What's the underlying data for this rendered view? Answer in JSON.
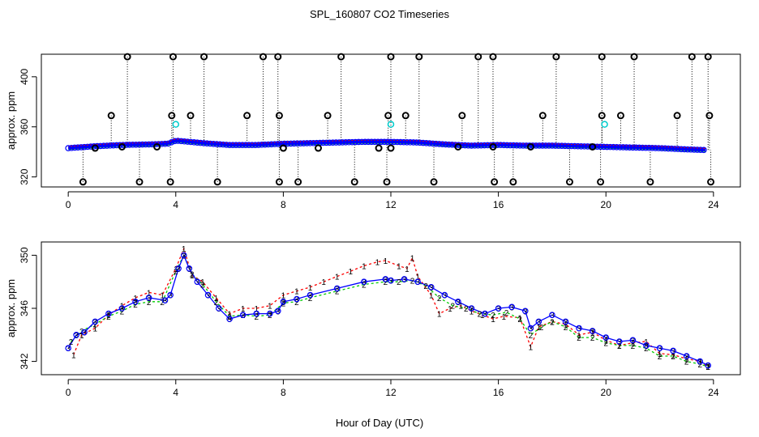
{
  "chart_data": {
    "type": "line",
    "title": "SPL_160807  CO2 Timeseries",
    "xlabel": "Hour of Day (UTC)",
    "colors": {
      "s1": "#ff0000",
      "s2": "#00cc00",
      "s3": "#0000ff",
      "outlier": "#000000",
      "cyan": "#00cccc"
    },
    "panels": [
      {
        "name": "top",
        "ylabel": "approx. ppm",
        "xlim": [
          -1,
          25
        ],
        "ylim": [
          312,
          418
        ],
        "xticks": [
          "0",
          "4",
          "8",
          "12",
          "16",
          "20",
          "24"
        ],
        "xtickValues": [
          0,
          4,
          8,
          12,
          16,
          20,
          24
        ],
        "yticks": [
          "320",
          "360",
          "400"
        ],
        "ytickValues": [
          320,
          360,
          400
        ],
        "baseline": [
          [
            0,
            343
          ],
          [
            1,
            344.5
          ],
          [
            2,
            345.5
          ],
          [
            3,
            346
          ],
          [
            3.7,
            346.5
          ],
          [
            4,
            349
          ],
          [
            4.5,
            348
          ],
          [
            5,
            347
          ],
          [
            6,
            345.5
          ],
          [
            7,
            345.5
          ],
          [
            8,
            346.5
          ],
          [
            10,
            347.5
          ],
          [
            11,
            348
          ],
          [
            12,
            348
          ],
          [
            13,
            347.5
          ],
          [
            14,
            346
          ],
          [
            15,
            345
          ],
          [
            16,
            345.5
          ],
          [
            17,
            345
          ],
          [
            18,
            345
          ],
          [
            19,
            344.5
          ],
          [
            20,
            344
          ],
          [
            21,
            343.5
          ],
          [
            22,
            343
          ],
          [
            23,
            342
          ],
          [
            23.7,
            341.5
          ]
        ],
        "outliers_high": [
          [
            2.2,
            416
          ],
          [
            3.9,
            416
          ],
          [
            5.05,
            416
          ],
          [
            7.25,
            416
          ],
          [
            7.8,
            416
          ],
          [
            10.15,
            416
          ],
          [
            12,
            416
          ],
          [
            13.05,
            416
          ],
          [
            15.25,
            416
          ],
          [
            15.8,
            416
          ],
          [
            18.15,
            416
          ],
          [
            19.85,
            416
          ],
          [
            21.05,
            416
          ],
          [
            23.2,
            416
          ],
          [
            23.8,
            416
          ]
        ],
        "outliers_mid": [
          [
            1.6,
            369
          ],
          [
            3.85,
            369
          ],
          [
            4.55,
            369
          ],
          [
            6.65,
            369
          ],
          [
            7.85,
            369
          ],
          [
            9.65,
            369
          ],
          [
            11.9,
            369
          ],
          [
            12.55,
            369
          ],
          [
            14.65,
            369
          ],
          [
            17.65,
            369
          ],
          [
            19.85,
            369
          ],
          [
            20.55,
            369
          ],
          [
            22.65,
            369
          ],
          [
            23.85,
            369
          ]
        ],
        "outliers_low": [
          [
            0.55,
            316
          ],
          [
            2.65,
            316
          ],
          [
            3.8,
            316
          ],
          [
            5.55,
            316
          ],
          [
            7.85,
            316
          ],
          [
            8.55,
            316
          ],
          [
            10.65,
            316
          ],
          [
            11.85,
            316
          ],
          [
            13.6,
            316
          ],
          [
            15.85,
            316
          ],
          [
            16.55,
            316
          ],
          [
            18.65,
            316
          ],
          [
            19.8,
            316
          ],
          [
            21.65,
            316
          ],
          [
            23.9,
            316
          ]
        ],
        "near_baseline": [
          [
            1.0,
            343
          ],
          [
            2.0,
            344
          ],
          [
            3.3,
            344
          ],
          [
            8.0,
            343
          ],
          [
            9.3,
            343
          ],
          [
            11.55,
            343
          ],
          [
            12.0,
            343
          ],
          [
            14.5,
            344
          ],
          [
            15.8,
            344
          ],
          [
            17.2,
            344
          ],
          [
            19.5,
            344
          ]
        ],
        "cyan_points": [
          [
            4.0,
            362
          ],
          [
            12.0,
            362
          ],
          [
            19.95,
            362
          ]
        ]
      },
      {
        "name": "bottom",
        "ylabel": "approx. ppm",
        "xlim": [
          -1,
          25
        ],
        "ylim": [
          341,
          351
        ],
        "xticks": [
          "0",
          "4",
          "8",
          "12",
          "16",
          "20",
          "24"
        ],
        "xtickValues": [
          0,
          4,
          8,
          12,
          16,
          20,
          24
        ],
        "yticks": [
          "342",
          "346",
          "350"
        ],
        "ytickValues": [
          342,
          346,
          350
        ],
        "series3": [
          [
            0,
            343
          ],
          [
            0.3,
            344
          ],
          [
            0.6,
            344.2
          ],
          [
            1,
            345
          ],
          [
            1.5,
            345.6
          ],
          [
            2,
            346
          ],
          [
            2.5,
            346.5
          ],
          [
            3,
            346.8
          ],
          [
            3.6,
            346.6
          ],
          [
            3.8,
            347
          ],
          [
            4.1,
            349
          ],
          [
            4.3,
            350
          ],
          [
            4.5,
            349
          ],
          [
            4.8,
            348
          ],
          [
            5.2,
            347
          ],
          [
            5.6,
            346
          ],
          [
            6,
            345.2
          ],
          [
            6.5,
            345.5
          ],
          [
            7,
            345.6
          ],
          [
            7.5,
            345.6
          ],
          [
            7.8,
            345.8
          ],
          [
            8,
            346.5
          ],
          [
            8.5,
            346.7
          ],
          [
            9,
            347
          ],
          [
            10,
            347.5
          ],
          [
            11,
            348
          ],
          [
            11.8,
            348.2
          ],
          [
            12,
            348.1
          ],
          [
            12.5,
            348.2
          ],
          [
            13,
            348
          ],
          [
            13.5,
            347.6
          ],
          [
            14,
            347
          ],
          [
            14.5,
            346.5
          ],
          [
            15,
            346
          ],
          [
            15.5,
            345.6
          ],
          [
            16,
            346
          ],
          [
            16.5,
            346.1
          ],
          [
            17,
            345.8
          ],
          [
            17.2,
            344.5
          ],
          [
            17.5,
            345
          ],
          [
            18,
            345.5
          ],
          [
            18.5,
            345
          ],
          [
            19,
            344.5
          ],
          [
            19.5,
            344.3
          ],
          [
            20,
            343.8
          ],
          [
            20.5,
            343.5
          ],
          [
            21,
            343.6
          ],
          [
            21.5,
            343.2
          ],
          [
            22,
            343
          ],
          [
            22.5,
            342.8
          ],
          [
            23,
            342.4
          ],
          [
            23.5,
            342
          ],
          [
            23.8,
            341.7
          ]
        ],
        "series1": [
          [
            0.2,
            342.5
          ],
          [
            0.5,
            344
          ],
          [
            1,
            344.5
          ],
          [
            1.5,
            345.5
          ],
          [
            2,
            346.2
          ],
          [
            2.5,
            346.8
          ],
          [
            3,
            347.2
          ],
          [
            3.5,
            347
          ],
          [
            4,
            349
          ],
          [
            4.3,
            350.5
          ],
          [
            4.6,
            348.5
          ],
          [
            5,
            348
          ],
          [
            5.5,
            346.8
          ],
          [
            6,
            345.6
          ],
          [
            6.5,
            346
          ],
          [
            7,
            346
          ],
          [
            7.5,
            346.2
          ],
          [
            8,
            347
          ],
          [
            8.5,
            347.3
          ],
          [
            9,
            347.6
          ],
          [
            9.5,
            348
          ],
          [
            10,
            348.4
          ],
          [
            10.5,
            348.8
          ],
          [
            11,
            349.2
          ],
          [
            11.5,
            349.5
          ],
          [
            11.8,
            349.6
          ],
          [
            12.3,
            349.2
          ],
          [
            12.6,
            349
          ],
          [
            12.8,
            349.8
          ],
          [
            13,
            348.4
          ],
          [
            13.5,
            347
          ],
          [
            13.8,
            345.6
          ],
          [
            14.2,
            346
          ],
          [
            14.6,
            346.2
          ],
          [
            15,
            345.8
          ],
          [
            15.4,
            345.5
          ],
          [
            15.8,
            345.2
          ],
          [
            16.2,
            345.4
          ],
          [
            16.8,
            345.3
          ],
          [
            17.2,
            343.1
          ],
          [
            17.5,
            344.6
          ],
          [
            18,
            345
          ],
          [
            18.5,
            344.8
          ],
          [
            19,
            344
          ],
          [
            19.5,
            344.2
          ],
          [
            20,
            343.6
          ],
          [
            20.5,
            343.2
          ],
          [
            21,
            343.4
          ],
          [
            21.5,
            343.5
          ],
          [
            22,
            342.6
          ],
          [
            22.5,
            342.5
          ],
          [
            23,
            342.2
          ],
          [
            23.5,
            342
          ],
          [
            23.8,
            341.6
          ]
        ],
        "series2": [
          [
            0.1,
            343.5
          ],
          [
            0.5,
            344.3
          ],
          [
            1,
            344.8
          ],
          [
            1.5,
            345.4
          ],
          [
            2,
            345.8
          ],
          [
            2.5,
            346.3
          ],
          [
            3,
            346.5
          ],
          [
            3.5,
            346.5
          ],
          [
            4,
            348.8
          ],
          [
            4.3,
            350
          ],
          [
            4.6,
            348.6
          ],
          [
            5,
            347.8
          ],
          [
            5.5,
            346.5
          ],
          [
            6,
            345.4
          ],
          [
            6.5,
            345.5
          ],
          [
            7,
            345.4
          ],
          [
            7.5,
            345.5
          ],
          [
            8,
            346.4
          ],
          [
            8.5,
            346.5
          ],
          [
            9,
            346.8
          ],
          [
            10,
            347.3
          ],
          [
            11,
            347.8
          ],
          [
            11.8,
            348
          ],
          [
            12.3,
            348
          ],
          [
            12.8,
            348.1
          ],
          [
            13.3,
            347.7
          ],
          [
            13.8,
            346.8
          ],
          [
            14.3,
            346.2
          ],
          [
            14.8,
            346
          ],
          [
            15.3,
            345.6
          ],
          [
            15.8,
            345.5
          ],
          [
            16.3,
            345.7
          ],
          [
            16.8,
            345.2
          ],
          [
            17.2,
            344
          ],
          [
            17.6,
            344.6
          ],
          [
            18,
            345
          ],
          [
            18.5,
            344.6
          ],
          [
            19,
            343.8
          ],
          [
            19.5,
            343.8
          ],
          [
            20,
            343.4
          ],
          [
            20.5,
            343.2
          ],
          [
            21,
            343.2
          ],
          [
            21.5,
            343
          ],
          [
            22,
            342.4
          ],
          [
            22.5,
            342.4
          ],
          [
            23,
            342
          ],
          [
            23.5,
            341.8
          ],
          [
            23.8,
            341.6
          ]
        ]
      }
    ]
  }
}
